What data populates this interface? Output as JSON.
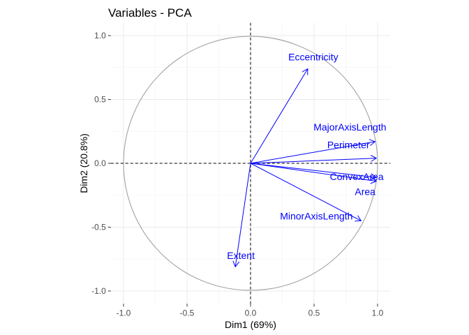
{
  "chart_data": {
    "type": "scatter",
    "subtype": "pca-variable-correlation-circle",
    "title": "Variables - PCA",
    "xlabel": "Dim1 (69%)",
    "ylabel": "Dim2 (20.8%)",
    "xlim": [
      -1.1,
      1.1
    ],
    "ylim": [
      -1.1,
      1.1
    ],
    "x_ticks": [
      -1.0,
      -0.5,
      0.0,
      0.5,
      1.0
    ],
    "y_ticks": [
      -1.0,
      -0.5,
      0.0,
      0.5,
      1.0
    ],
    "x_tick_labels": [
      "-1.0",
      "-0.5",
      "0.0",
      "0.5",
      "1.0"
    ],
    "y_tick_labels": [
      "-1.0",
      "-0.5",
      "0.0",
      "0.5",
      "1.0"
    ],
    "grid": true,
    "unit_circle": true,
    "reference_lines": [
      0,
      0
    ],
    "arrow_color": "#0000ff",
    "circle_color": "#999999",
    "variables": [
      {
        "name": "Eccentricity",
        "x": 0.45,
        "y": 0.74
      },
      {
        "name": "MajorAxisLength",
        "x": 0.98,
        "y": 0.17
      },
      {
        "name": "Perimeter",
        "x": 0.99,
        "y": 0.04
      },
      {
        "name": "ConvexArea",
        "x": 0.99,
        "y": -0.11
      },
      {
        "name": "Area",
        "x": 0.99,
        "y": -0.14
      },
      {
        "name": "MinorAxisLength",
        "x": 0.87,
        "y": -0.45
      },
      {
        "name": "Extent",
        "x": -0.12,
        "y": -0.81
      }
    ]
  }
}
